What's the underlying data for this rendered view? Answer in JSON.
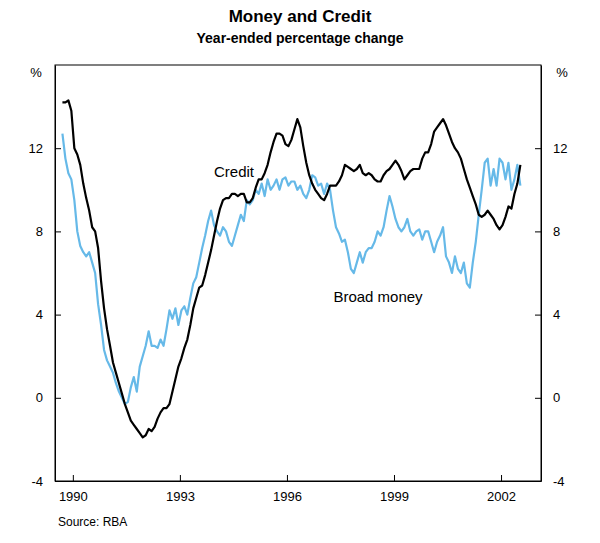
{
  "chart_data": {
    "type": "line",
    "title": "Money and Credit",
    "subtitle": "Year-ended percentage change",
    "source": "Source: RBA",
    "y_label": "%",
    "y2_label": "%",
    "grid": false,
    "xlim": [
      1989.5,
      2003.12
    ],
    "xticks": [
      1990,
      1993,
      1996,
      1999,
      2002
    ],
    "ylim": [
      -4,
      16
    ],
    "yticks": [
      -4,
      0,
      4,
      8,
      12
    ],
    "y2lim": [
      -4,
      16
    ],
    "y2ticks": [
      -4,
      0,
      4,
      8,
      12
    ],
    "x": [
      1989.708,
      1989.792,
      1989.875,
      1989.958,
      1990.042,
      1990.125,
      1990.208,
      1990.292,
      1990.375,
      1990.458,
      1990.542,
      1990.625,
      1990.708,
      1990.792,
      1990.875,
      1990.958,
      1991.042,
      1991.125,
      1991.208,
      1991.292,
      1991.375,
      1991.458,
      1991.542,
      1991.625,
      1991.708,
      1991.792,
      1991.875,
      1991.958,
      1992.042,
      1992.125,
      1992.208,
      1992.292,
      1992.375,
      1992.458,
      1992.542,
      1992.625,
      1992.708,
      1992.792,
      1992.875,
      1992.958,
      1993.042,
      1993.125,
      1993.208,
      1993.292,
      1993.375,
      1993.458,
      1993.542,
      1993.625,
      1993.708,
      1993.792,
      1993.875,
      1993.958,
      1994.042,
      1994.125,
      1994.208,
      1994.292,
      1994.375,
      1994.458,
      1994.542,
      1994.625,
      1994.708,
      1994.792,
      1994.875,
      1994.958,
      1995.042,
      1995.125,
      1995.208,
      1995.292,
      1995.375,
      1995.458,
      1995.542,
      1995.625,
      1995.708,
      1995.792,
      1995.875,
      1995.958,
      1996.042,
      1996.125,
      1996.208,
      1996.292,
      1996.375,
      1996.458,
      1996.542,
      1996.625,
      1996.708,
      1996.792,
      1996.875,
      1996.958,
      1997.042,
      1997.125,
      1997.208,
      1997.292,
      1997.375,
      1997.458,
      1997.542,
      1997.625,
      1997.708,
      1997.792,
      1997.875,
      1997.958,
      1998.042,
      1998.125,
      1998.208,
      1998.292,
      1998.375,
      1998.458,
      1998.542,
      1998.625,
      1998.708,
      1998.792,
      1998.875,
      1998.958,
      1999.042,
      1999.125,
      1999.208,
      1999.292,
      1999.375,
      1999.458,
      1999.542,
      1999.625,
      1999.708,
      1999.792,
      1999.875,
      1999.958,
      2000.042,
      2000.125,
      2000.208,
      2000.292,
      2000.375,
      2000.458,
      2000.542,
      2000.625,
      2000.708,
      2000.792,
      2000.875,
      2000.958,
      2001.042,
      2001.125,
      2001.208,
      2001.292,
      2001.375,
      2001.458,
      2001.542,
      2001.625,
      2001.708,
      2001.792,
      2001.875,
      2001.958,
      2002.042,
      2002.125,
      2002.208,
      2002.292,
      2002.375,
      2002.458,
      2002.542
    ],
    "series": [
      {
        "name": "Credit",
        "color": "#000000",
        "values": [
          14.2,
          14.2,
          14.3,
          13.8,
          12.0,
          11.7,
          11.2,
          10.3,
          9.6,
          9.0,
          8.2,
          8.0,
          7.2,
          5.6,
          4.3,
          3.3,
          2.5,
          1.7,
          1.2,
          0.7,
          0.2,
          -0.3,
          -0.7,
          -1.1,
          -1.3,
          -1.5,
          -1.7,
          -1.9,
          -1.8,
          -1.5,
          -1.6,
          -1.4,
          -1.0,
          -0.7,
          -0.5,
          -0.5,
          -0.3,
          0.3,
          0.9,
          1.5,
          1.9,
          2.4,
          2.8,
          3.5,
          4.3,
          4.8,
          5.3,
          5.4,
          5.9,
          6.5,
          7.1,
          7.8,
          8.5,
          9.1,
          9.5,
          9.6,
          9.6,
          9.8,
          9.8,
          9.7,
          9.8,
          9.8,
          9.4,
          9.4,
          9.6,
          10.1,
          10.5,
          10.5,
          10.8,
          11.2,
          11.8,
          12.3,
          12.7,
          12.7,
          12.6,
          12.2,
          12.1,
          12.4,
          12.9,
          13.4,
          13.0,
          12.1,
          11.3,
          10.7,
          10.3,
          10.0,
          9.8,
          9.6,
          9.5,
          9.8,
          10.2,
          10.2,
          10.2,
          10.4,
          10.7,
          11.2,
          11.1,
          11.0,
          10.9,
          11.0,
          11.2,
          10.8,
          10.7,
          10.8,
          10.7,
          10.5,
          10.4,
          10.4,
          10.7,
          10.9,
          11.0,
          11.2,
          11.4,
          11.2,
          10.9,
          10.5,
          10.7,
          10.9,
          11.0,
          11.0,
          11.0,
          11.5,
          11.8,
          11.8,
          12.2,
          12.8,
          13.0,
          13.2,
          13.4,
          13.1,
          12.7,
          12.3,
          12.0,
          11.8,
          11.5,
          11.0,
          10.5,
          10.1,
          9.7,
          9.3,
          8.8,
          8.7,
          8.8,
          9.0,
          8.8,
          8.6,
          8.3,
          8.1,
          8.3,
          8.7,
          9.2,
          9.1,
          9.8,
          10.3,
          11.2
        ]
      },
      {
        "name": "Broad money",
        "color": "#66b9e8",
        "values": [
          12.7,
          11.5,
          10.8,
          10.5,
          9.5,
          8.0,
          7.3,
          7.0,
          6.8,
          7.0,
          6.5,
          6.0,
          4.5,
          3.5,
          2.3,
          1.8,
          1.5,
          1.2,
          0.7,
          0.3,
          0.0,
          -0.3,
          -0.2,
          0.5,
          1.0,
          0.3,
          1.5,
          2.0,
          2.5,
          3.2,
          2.5,
          2.5,
          2.4,
          2.8,
          2.5,
          3.3,
          4.2,
          3.8,
          4.3,
          3.5,
          4.2,
          4.4,
          4.0,
          4.8,
          5.5,
          5.8,
          6.5,
          7.2,
          7.8,
          8.5,
          9.0,
          8.3,
          8.0,
          7.8,
          8.2,
          8.0,
          7.5,
          7.3,
          7.8,
          8.3,
          8.8,
          8.5,
          9.5,
          9.3,
          9.5,
          10.0,
          9.8,
          10.3,
          9.7,
          10.5,
          10.0,
          10.2,
          10.5,
          10.0,
          10.5,
          10.6,
          10.2,
          10.4,
          10.4,
          10.0,
          10.2,
          9.8,
          9.6,
          10.0,
          10.7,
          10.6,
          10.2,
          10.3,
          9.8,
          10.3,
          10.0,
          9.0,
          8.2,
          7.9,
          7.5,
          7.6,
          7.0,
          6.2,
          6.0,
          6.5,
          7.0,
          6.5,
          7.0,
          7.2,
          7.2,
          7.5,
          8.0,
          7.8,
          8.2,
          9.0,
          9.7,
          9.2,
          8.6,
          8.2,
          8.0,
          8.2,
          8.6,
          8.0,
          7.8,
          8.0,
          8.1,
          7.6,
          8.0,
          8.0,
          7.5,
          7.0,
          7.5,
          7.8,
          8.2,
          6.8,
          6.5,
          6.0,
          6.8,
          6.2,
          6.0,
          6.5,
          5.5,
          5.3,
          6.5,
          7.5,
          8.8,
          10.0,
          11.3,
          11.5,
          10.2,
          11.0,
          10.2,
          11.5,
          11.3,
          10.5,
          11.3,
          10.0,
          10.5,
          11.2,
          10.2
        ]
      }
    ]
  }
}
